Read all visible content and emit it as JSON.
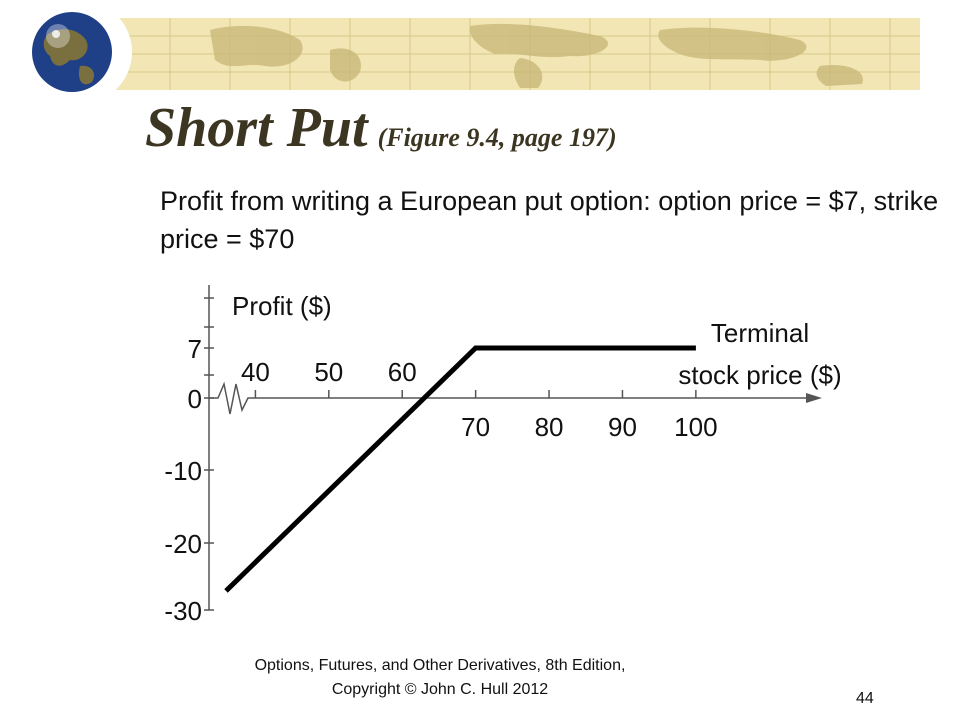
{
  "slide": {
    "title": "Short Put",
    "title_reference": "(Figure 9.4, page 197)",
    "subtitle": "Profit from writing a European put option: option price = $7, strike price = $70",
    "footer": {
      "line1": "Options, Futures, and Other Derivatives, 8th Edition,",
      "line2": "Copyright © John C. Hull 2012"
    },
    "page_number": "44"
  },
  "colors": {
    "title": "#3b3521",
    "banner_fill": "#f2e6b4",
    "banner_grid": "#d7c98a",
    "banner_land": "#c9b979",
    "globe_ocean": "#1f3f86",
    "globe_land": "#7a6f3e"
  },
  "icons": {
    "banner_logo": "globe-icon"
  },
  "chart_data": {
    "type": "line",
    "ylabel": "Profit ($)",
    "xlabel_lines": [
      "Terminal",
      "stock price ($)"
    ],
    "x_ticks_above": [
      "40",
      "50",
      "60"
    ],
    "x_ticks_below": [
      "70",
      "80",
      "90",
      "100"
    ],
    "y_ticks": [
      "7",
      "0",
      "-10",
      "-20",
      "-30"
    ],
    "xlim": [
      30,
      118
    ],
    "ylim": [
      -30,
      14
    ],
    "x_axis_break": true,
    "strike_price": 70,
    "option_price": 7,
    "series": [
      {
        "x": [
          36,
          70,
          100
        ],
        "y": [
          -27,
          7,
          7
        ]
      }
    ]
  }
}
